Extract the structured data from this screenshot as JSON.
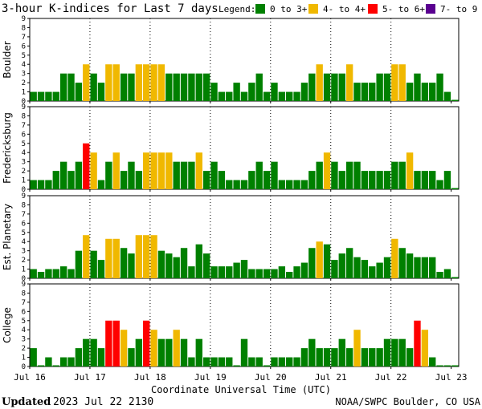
{
  "title": "3-hour K-indices for Last 7 days",
  "legend": {
    "label": "Legend:",
    "items": [
      {
        "label": "0 to 3+",
        "color": "#008000"
      },
      {
        "label": "4- to 4+",
        "color": "#f0b800"
      },
      {
        "label": "5- to 6+",
        "color": "#ff0000"
      },
      {
        "label": "7- to 9",
        "color": "#5a0090"
      }
    ]
  },
  "footer": {
    "updated_label": "Updated",
    "updated_value": "2023 Jul 22 2130",
    "agency": "NOAA/SWPC Boulder, CO USA"
  },
  "chart_data": {
    "type": "bar",
    "xlabel": "Coordinate Universal Time (UTC)",
    "x_ticks": [
      "Jul 16",
      "Jul 17",
      "Jul 18",
      "Jul 19",
      "Jul 20",
      "Jul 21",
      "Jul 22",
      "Jul 23"
    ],
    "y_ticks": [
      "0",
      "1",
      "2",
      "3",
      "4",
      "5",
      "6",
      "7",
      "8",
      "9"
    ],
    "ylim": [
      0,
      9
    ],
    "interval_hours": 3,
    "color_scale": [
      {
        "max": 3.99,
        "color": "#008000"
      },
      {
        "max": 4.99,
        "color": "#f0b800"
      },
      {
        "max": 6.99,
        "color": "#ff0000"
      },
      {
        "max": 9,
        "color": "#5a0090"
      }
    ],
    "series": [
      {
        "name": "Boulder",
        "values": [
          1,
          1,
          1,
          1,
          3,
          3,
          2,
          4,
          3,
          2,
          4,
          4,
          3,
          3,
          4,
          4,
          4,
          4,
          3,
          3,
          3,
          3,
          3,
          3,
          2,
          1,
          1,
          2,
          1,
          2,
          3,
          1,
          2,
          1,
          1,
          1,
          2,
          3,
          4,
          3,
          3,
          3,
          4,
          2,
          2,
          2,
          3,
          3,
          4,
          4,
          2,
          3,
          2,
          2,
          3,
          1,
          0
        ]
      },
      {
        "name": "Fredericksburg",
        "values": [
          1,
          1,
          1,
          2,
          3,
          2,
          3,
          5,
          4,
          1,
          3,
          4,
          2,
          3,
          2,
          4,
          4,
          4,
          4,
          3,
          3,
          3,
          4,
          2,
          3,
          2,
          1,
          1,
          1,
          2,
          3,
          2,
          3,
          1,
          1,
          1,
          1,
          2,
          3,
          4,
          3,
          2,
          3,
          3,
          2,
          2,
          2,
          2,
          3,
          3,
          4,
          2,
          2,
          2,
          1,
          2,
          0
        ]
      },
      {
        "name": "Est. Planetary",
        "values": [
          1,
          0.7,
          1,
          1,
          1.3,
          1,
          3,
          4.7,
          3,
          2,
          4.3,
          4.3,
          3.3,
          2.7,
          4.7,
          4.7,
          4.7,
          3,
          2.7,
          2.3,
          3.3,
          1.3,
          3.7,
          2.7,
          1.3,
          1.3,
          1.3,
          1.7,
          2,
          1,
          1,
          1,
          1,
          1.3,
          0.7,
          1.3,
          1.7,
          3.3,
          4,
          3.7,
          2,
          2.7,
          3.3,
          2.3,
          2,
          1.3,
          1.7,
          2.3,
          4.3,
          3.3,
          2.7,
          2.3,
          2.3,
          2.3,
          0.7,
          1,
          0
        ]
      },
      {
        "name": "College",
        "values": [
          2,
          0,
          1,
          0,
          1,
          1,
          2,
          3,
          3,
          2,
          5,
          5,
          4,
          2,
          3,
          5,
          4,
          3,
          3,
          4,
          3,
          1,
          3,
          1,
          1,
          1,
          1,
          0,
          3,
          1,
          1,
          0,
          1,
          1,
          1,
          1,
          2,
          3,
          2,
          2,
          2,
          3,
          2,
          4,
          2,
          2,
          2,
          3,
          3,
          3,
          2,
          5,
          4,
          1,
          0,
          0,
          0
        ]
      }
    ]
  }
}
